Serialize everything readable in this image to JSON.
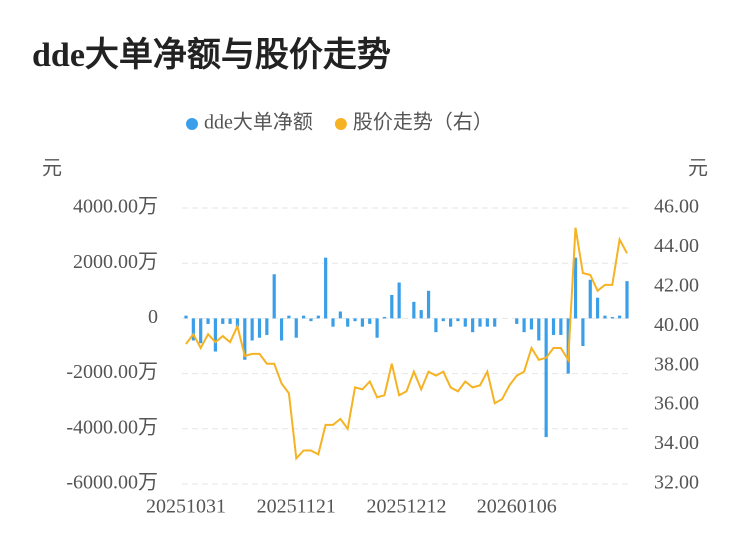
{
  "chart_data": {
    "type": "bar-line",
    "title": "dde大单净额与股价走势",
    "y_label": "元",
    "y2_label": "元",
    "categories": [
      "20251031",
      null,
      null,
      null,
      null,
      null,
      null,
      null,
      null,
      null,
      null,
      null,
      null,
      null,
      null,
      "20251121",
      null,
      null,
      null,
      null,
      null,
      null,
      null,
      null,
      null,
      null,
      null,
      null,
      null,
      null,
      "20251212",
      null,
      null,
      null,
      null,
      null,
      null,
      null,
      null,
      null,
      null,
      null,
      null,
      null,
      null,
      "20260106",
      null,
      null,
      null,
      null,
      null,
      null,
      null,
      null,
      null,
      null,
      null,
      null,
      null,
      null,
      null
    ],
    "series": [
      {
        "name": "dde大单净额",
        "type": "bar",
        "color": "#3a9fe8",
        "axis": "y",
        "values": [
          100,
          -800,
          -900,
          -200,
          -1200,
          -200,
          -200,
          -300,
          -1500,
          -800,
          -700,
          -600,
          1600,
          -800,
          100,
          -700,
          100,
          -100,
          100,
          2200,
          -300,
          250,
          -300,
          -100,
          -300,
          -200,
          -700,
          50,
          850,
          1300,
          0,
          600,
          300,
          1000,
          -500,
          -100,
          -300,
          -100,
          -300,
          -500,
          -300,
          -300,
          -300,
          0,
          0,
          -200,
          -500,
          -400,
          -800,
          -4300,
          -600,
          -600,
          -2000,
          2200,
          -1000,
          1400,
          750,
          100,
          50,
          100,
          1350
        ]
      },
      {
        "name": "股价走势（右）",
        "type": "line",
        "color": "#f5b323",
        "axis": "y2",
        "values": [
          39.1,
          39.6,
          38.9,
          39.6,
          39.2,
          39.5,
          39.2,
          40.0,
          38.5,
          38.6,
          38.6,
          38.1,
          38.1,
          37.1,
          36.6,
          33.3,
          33.7,
          33.7,
          33.5,
          35.0,
          35.0,
          35.3,
          34.8,
          36.9,
          36.8,
          37.2,
          36.4,
          36.5,
          38.1,
          36.5,
          36.7,
          37.7,
          36.8,
          37.7,
          37.5,
          37.7,
          36.9,
          36.7,
          37.2,
          36.9,
          37.0,
          37.7,
          36.1,
          36.3,
          37.0,
          37.5,
          37.7,
          38.9,
          38.3,
          38.4,
          38.9,
          38.9,
          38.3,
          45.0,
          42.7,
          42.6,
          41.8,
          42.1,
          42.1,
          44.4,
          43.7
        ]
      }
    ],
    "ylim": [
      -6000,
      4000
    ],
    "yticks": [
      {
        "value": -6000,
        "label": "-6000.00万"
      },
      {
        "value": -4000,
        "label": "-4000.00万"
      },
      {
        "value": -2000,
        "label": "-2000.00万"
      },
      0,
      {
        "value": 2000,
        "label": "2000.00万"
      },
      {
        "value": 4000,
        "label": "4000.00万"
      }
    ],
    "y2lim": [
      32,
      46
    ],
    "y2ticks": [
      {
        "value": 32,
        "label": "32.00"
      },
      {
        "value": 34,
        "label": "34.00"
      },
      {
        "value": 36,
        "label": "36.00"
      },
      {
        "value": 38,
        "label": "38.00"
      },
      {
        "value": 40,
        "label": "40.00"
      },
      {
        "value": 42,
        "label": "42.00"
      },
      {
        "value": 44,
        "label": "44.00"
      },
      {
        "value": 46,
        "label": "46.00"
      }
    ],
    "grid": true,
    "legend": "top"
  }
}
